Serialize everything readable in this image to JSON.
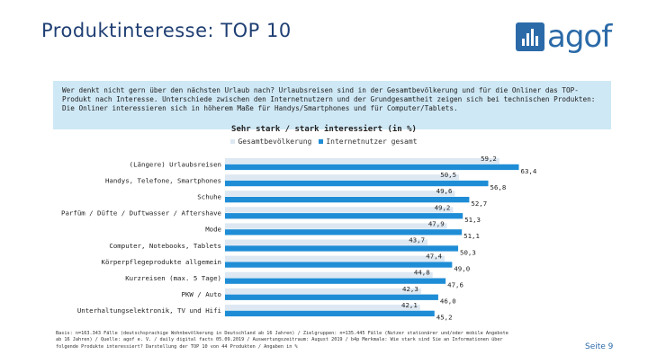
{
  "header": {
    "title": "Produktinteresse: TOP 10",
    "logo_text": "agof"
  },
  "intro": {
    "text": "Wer denkt nicht gern über den nächsten Urlaub nach? Urlaubsreisen sind in der Gesamtbevölkerung und für die Onliner das TOP-Produkt nach Interesse. Unterschiede zwischen den Internetnutzern und der Grundgesamtheit zeigen sich bei technischen Produkten: Die Onliner interessieren sich in höherem Maße für Handys/Smartphones und für Computer/Tablets."
  },
  "chart_data": {
    "type": "bar",
    "orientation": "horizontal",
    "title": "Sehr stark / stark interessiert (in %)",
    "categories": [
      "(Längere) Urlaubsreisen",
      "Handys, Telefone, Smartphones",
      "Schuhe",
      "Parfüm / Düfte / Duftwasser / Aftershave",
      "Mode",
      "Computer, Notebooks, Tablets",
      "Körperpflegeprodukte allgemein",
      "Kurzreisen (max. 5 Tage)",
      "PKW / Auto",
      "Unterhaltungselektronik, TV und Hifi"
    ],
    "series": [
      {
        "name": "Gesamtbevölkerung",
        "values": [
          59.2,
          50.5,
          49.6,
          49.2,
          47.9,
          43.7,
          47.4,
          44.8,
          42.3,
          42.1
        ],
        "labels": [
          "59,2",
          "50,5",
          "49,6",
          "49,2",
          "47,9",
          "43,7",
          "47,4",
          "44,8",
          "42,3",
          "42,1"
        ]
      },
      {
        "name": "Internetnutzer gesamt",
        "values": [
          63.4,
          56.8,
          52.7,
          51.3,
          51.1,
          50.3,
          49.0,
          47.6,
          46.0,
          45.2
        ],
        "labels": [
          "63,4",
          "56,8",
          "52,7",
          "51,3",
          "51,1",
          "50,3",
          "49,0",
          "47,6",
          "46,0",
          "45,2"
        ]
      }
    ],
    "legend": "top",
    "grid": false
  },
  "colors": {
    "series1": "#dde8f2",
    "series2": "#1f8dd6",
    "title": "#1f3f73",
    "intro_bg": "#cfe8f5"
  },
  "footer": {
    "line1": "Basis: n=163.343 Fälle (deutschsprachige Wohnbevölkerung in Deutschland ab 16 Jahren) / Zielgruppen: n=135.445 Fälle (Nutzer stationärer und/oder mobile Angebote",
    "line2": "ab 16 Jahren) / Quelle: agof e. V. / daily digital facts 05.09.2019 / Auswertungszeitraum: August 2019 / b4p Merkmale: Wie stark sind Sie an Informationen über",
    "line3": "folgende Produkte interessiert? Darstellung der TOP 10 von 44 Produkten / Angaben in %"
  },
  "page": {
    "label": "Seite 9"
  }
}
